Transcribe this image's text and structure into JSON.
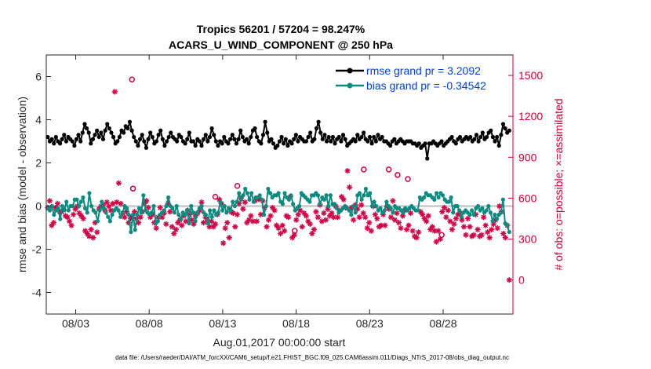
{
  "chart_data": {
    "type": "line",
    "title": "Tropics 56201 / 57204 = 98.247%",
    "subtitle": "ACARS_U_WIND_COMPONENT @ 250 hPa",
    "xlabel": "Aug.01,2017 00:00:00 start",
    "ylabel": "rmse and bias (model - observation)",
    "y2label": "# of obs: o=possible; ×=assimilated",
    "footer": "data file: /Users/raeder/DAI/ATM_forcXX/CAM6_setup/f.e21.FHIST_BGC.f09_025.CAM6assim.011/Diags_NTrS_2017-08/obs_diag_output.nc",
    "x_range_days": [
      0,
      31.75
    ],
    "xticks": [
      {
        "value": 2,
        "label": "08/03"
      },
      {
        "value": 7,
        "label": "08/08"
      },
      {
        "value": 12,
        "label": "08/13"
      },
      {
        "value": 17,
        "label": "08/18"
      },
      {
        "value": 22,
        "label": "08/23"
      },
      {
        "value": 27,
        "label": "08/28"
      }
    ],
    "ylim": [
      -5,
      7
    ],
    "yticks": [
      -4,
      -2,
      0,
      2,
      4,
      6
    ],
    "y2lim": [
      -250,
      1650
    ],
    "y2ticks": [
      0,
      300,
      600,
      900,
      1200,
      1500
    ],
    "colors": {
      "rmse": "#000000",
      "bias": "#0d8a80",
      "obs": "#cc0044",
      "zero": "#bdbdbd",
      "axis": "#262626",
      "legend_text": "#0044cc"
    },
    "series": [
      {
        "name": "rmse",
        "legend": "rmse grand pr = 3.2092",
        "axis": "left",
        "values": [
          3.2,
          3.0,
          3.1,
          2.9,
          3.2,
          3.0,
          2.9,
          3.1,
          3.3,
          3.0,
          3.2,
          3.1,
          3.0,
          2.8,
          3.1,
          3.3,
          3.0,
          3.4,
          3.8,
          3.6,
          3.4,
          2.9,
          3.1,
          3.3,
          3.5,
          3.2,
          3.4,
          3.1,
          3.5,
          3.8,
          3.6,
          3.4,
          3.2,
          2.9,
          3.0,
          3.2,
          3.5,
          3.4,
          3.7,
          3.6,
          3.9,
          3.5,
          3.2,
          3.0,
          2.8,
          3.1,
          3.3,
          3.0,
          2.7,
          3.1,
          3.4,
          3.2,
          2.9,
          3.0,
          3.3,
          3.5,
          3.1,
          2.8,
          3.0,
          3.2,
          3.4,
          3.2,
          3.1,
          3.0,
          3.3,
          3.2,
          3.0,
          2.9,
          3.1,
          3.4,
          3.0,
          3.0,
          2.8,
          3.1,
          3.0,
          2.8,
          3.1,
          3.3,
          3.0,
          3.2,
          3.6,
          3.3,
          3.0,
          2.8,
          3.0,
          2.9,
          3.2,
          3.0,
          2.9,
          3.1,
          3.3,
          3.1,
          2.9,
          3.1,
          3.5,
          3.2,
          3.0,
          3.1,
          2.9,
          3.2,
          3.5,
          3.6,
          3.2,
          3.0,
          2.9,
          3.3,
          3.9,
          3.4,
          3.0,
          3.1,
          2.9,
          2.7,
          2.8,
          3.0,
          3.2,
          2.9,
          3.1,
          2.8,
          3.0,
          2.9,
          3.1,
          3.3,
          3.0,
          3.2,
          3.1,
          3.0,
          3.0,
          3.2,
          3.4,
          3.0,
          3.1,
          3.6,
          3.9,
          3.4,
          3.1,
          3.3,
          3.0,
          3.2,
          3.0,
          3.2,
          2.9,
          3.1,
          3.2,
          3.0,
          3.3,
          3.1,
          2.8,
          2.9,
          3.0,
          3.1,
          3.0,
          3.3,
          3.1,
          3.2,
          3.4,
          3.1,
          3.0,
          3.2,
          2.9,
          3.2,
          3.0,
          3.3,
          3.1,
          3.2,
          3.0,
          3.0,
          2.9,
          2.8,
          3.0,
          3.1,
          2.9,
          3.0,
          3.1,
          3.0,
          2.9,
          3.0,
          3.0,
          3.0,
          2.9,
          2.9,
          2.8,
          2.9,
          2.7,
          2.8,
          2.9,
          2.2,
          2.9,
          2.9,
          3.0,
          2.9,
          2.8,
          2.9,
          3.0,
          2.8,
          2.9,
          3.0,
          3.1,
          3.2,
          3.0,
          2.9,
          3.1,
          3.2,
          3.0,
          3.1,
          3.2,
          3.1,
          3.2,
          3.0,
          3.1,
          3.3,
          3.0,
          3.2,
          3.4,
          3.1,
          3.2,
          3.4,
          3.5,
          3.2,
          3.0,
          3.2,
          2.8,
          3.3,
          3.8,
          3.6,
          3.4,
          3.5
        ]
      },
      {
        "name": "bias",
        "legend": "bias grand pr = -0.34542",
        "axis": "left",
        "values": [
          -0.1,
          -0.2,
          0.0,
          -0.4,
          -0.2,
          -0.1,
          -0.6,
          0.0,
          -0.2,
          0.2,
          -0.2,
          0.0,
          0.0,
          0.3,
          0.3,
          0.0,
          0.2,
          0.4,
          -0.1,
          -0.3,
          0.6,
          0.0,
          -0.2,
          -0.3,
          -0.7,
          -0.2,
          0.2,
          -0.1,
          -0.3,
          -0.5,
          -0.7,
          -0.4,
          -0.2,
          -0.1,
          -0.2,
          -0.5,
          -0.3,
          0.0,
          -0.1,
          -0.4,
          -1.2,
          -0.4,
          -1.1,
          -0.4,
          -0.1,
          -0.3,
          0.5,
          -0.2,
          -0.3,
          -0.4,
          -0.3,
          0.0,
          -0.8,
          -0.7,
          -0.4,
          -0.3,
          -0.2,
          0.0,
          0.4,
          0.0,
          -0.1,
          -0.3,
          0.0,
          -0.4,
          -0.6,
          -0.3,
          -0.4,
          -0.2,
          -0.8,
          0.0,
          -0.3,
          -0.7,
          -0.3,
          -0.1,
          0.0,
          -0.3,
          -0.4,
          -0.8,
          -0.2,
          -0.5,
          -0.2,
          -0.4,
          -0.3,
          0.2,
          -0.2,
          0.0,
          -0.3,
          -0.1,
          -0.2,
          0.2,
          0.0,
          0.2,
          0.6,
          0.3,
          0.5,
          0.8,
          0.6,
          0.3,
          0.6,
          0.2,
          0.4,
          0.4,
          0.5,
          0.3,
          -0.4,
          0.0,
          0.8,
          0.6,
          0.4,
          0.5,
          0.5,
          0.6,
          0.2,
          0.1,
          0.6,
          0.4,
          0.3,
          0.5,
          0.1,
          -0.2,
          -0.1,
          0.0,
          0.6,
          0.5,
          0.4,
          0.3,
          0.2,
          0.5,
          0.5,
          0.6,
          0.5,
          0.1,
          0.4,
          0.3,
          0.5,
          0.0,
          0.5,
          0.1,
          0.1,
          -0.1,
          -0.3,
          -0.2,
          -0.1,
          0.0,
          -0.1,
          -0.2,
          -0.4,
          0.0,
          -0.3,
          0.5,
          0.6,
          0.3,
          0.5,
          0.8,
          0.5,
          0.6,
          0.0,
          0.2,
          0.0,
          -0.2,
          -0.1,
          -0.3,
          -0.2,
          0.2,
          0.0,
          -0.1,
          -0.3,
          0.0,
          -0.1,
          -0.1,
          -0.2,
          -0.3,
          -0.1,
          -0.2,
          -0.1,
          0.0,
          -0.1,
          -0.2,
          -0.2,
          0.4,
          0.3,
          0.4,
          0.6,
          0.5,
          0.5,
          0.4,
          0.3,
          0.6,
          0.4,
          0.6,
          0.5,
          0.3,
          0.2,
          0.2,
          0.4,
          -0.3,
          0.0,
          0.0,
          -0.2,
          -0.5,
          -0.3,
          -0.2,
          -0.3,
          -0.4,
          -0.2,
          -0.4,
          -0.1,
          0.0,
          -0.2,
          -0.1,
          -0.3,
          -0.2,
          0.0,
          -0.3,
          -0.7,
          -0.4,
          -0.6,
          -0.4,
          -0.3,
          0.3,
          -0.8,
          -0.9,
          -1.2
        ]
      },
      {
        "name": "obs_assimilated",
        "axis": "right",
        "values": [
          530,
          580,
          400,
          420,
          530,
          560,
          500,
          500,
          520,
          470,
          460,
          430,
          400,
          480,
          520,
          540,
          490,
          470,
          450,
          360,
          340,
          320,
          370,
          310,
          420,
          350,
          520,
          540,
          550,
          510,
          570,
          540,
          510,
          560,
          1380,
          570,
          710,
          560,
          490,
          460,
          500,
          420,
          450,
          460,
          500,
          450,
          420,
          460,
          500,
          560,
          580,
          530,
          460,
          480,
          420,
          380,
          460,
          530,
          460,
          490,
          410,
          560,
          500,
          390,
          340,
          370,
          420,
          440,
          400,
          470,
          430,
          510,
          480,
          440,
          410,
          470,
          490,
          510,
          570,
          420,
          460,
          440,
          390,
          430,
          390,
          410,
          480,
          590,
          560,
          270,
          380,
          420,
          310,
          500,
          490,
          390,
          480,
          560,
          600,
          520,
          570,
          420,
          440,
          470,
          430,
          580,
          430,
          590,
          480,
          580,
          530,
          390,
          440,
          470,
          530,
          510,
          400,
          380,
          340,
          400,
          360,
          470,
          460,
          610,
          310,
          330,
          440,
          480,
          510,
          390,
          490,
          470,
          430,
          410,
          340,
          370,
          500,
          460,
          550,
          430,
          490,
          440,
          520,
          470,
          490,
          460,
          540,
          460,
          510,
          610,
          590,
          530,
          800,
          680,
          530,
          440,
          550,
          520,
          460,
          550,
          490,
          460,
          380,
          420,
          360,
          540,
          480,
          450,
          390,
          400,
          480,
          400,
          540,
          520,
          460,
          580,
          440,
          490,
          420,
          380,
          470,
          510,
          370,
          400,
          490,
          360,
          320,
          310,
          350,
          500,
          480,
          450,
          430,
          470,
          370,
          390,
          360,
          280,
          360,
          300,
          500,
          530,
          460,
          510,
          430,
          370,
          410,
          450,
          480,
          490,
          440,
          390,
          330,
          450,
          390,
          320,
          330,
          480,
          370,
          320,
          330,
          460,
          400,
          350,
          310,
          370,
          410,
          440,
          380,
          540,
          500,
          340,
          310,
          400,
          0
        ]
      },
      {
        "name": "obs_possible_outliers",
        "axis": "right",
        "points": [
          [
            5.83,
            1470
          ],
          [
            5.9,
            670
          ],
          [
            11.5,
            610
          ],
          [
            13.0,
            690
          ],
          [
            16.9,
            360
          ],
          [
            21.6,
            810
          ],
          [
            23.3,
            810
          ],
          [
            23.9,
            770
          ],
          [
            24.6,
            740
          ],
          [
            26.9,
            330
          ]
        ]
      }
    ]
  }
}
